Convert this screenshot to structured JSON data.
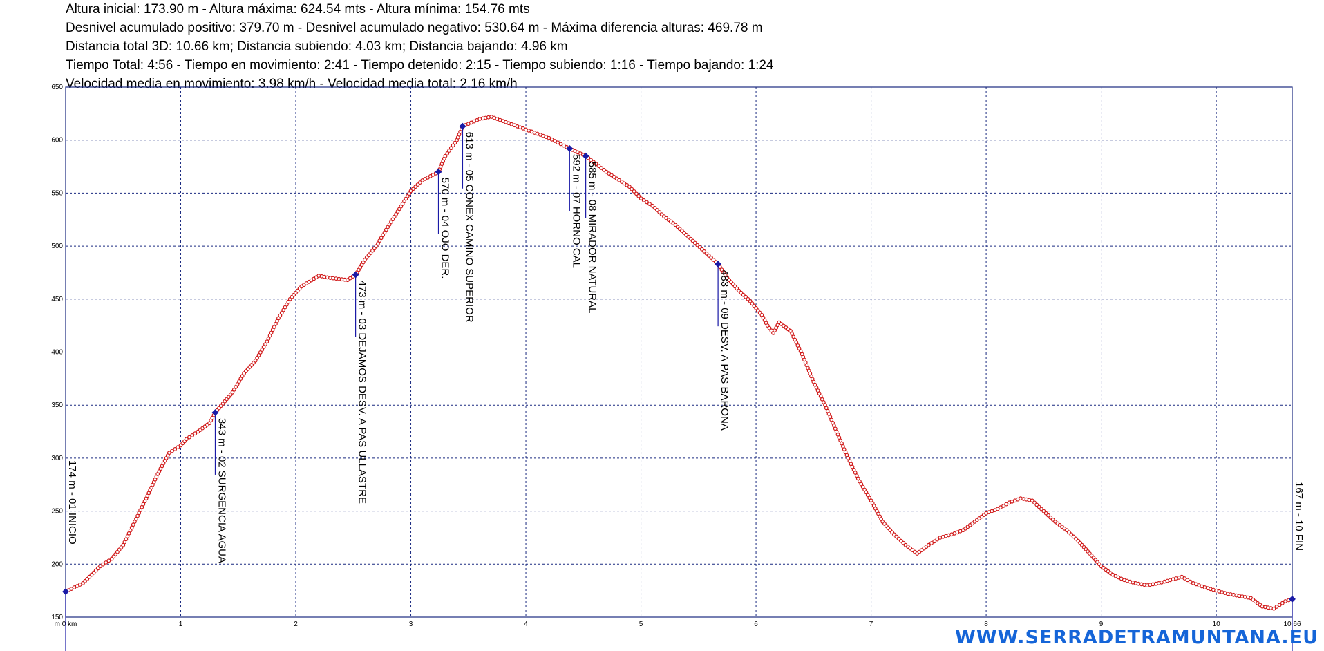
{
  "stats": {
    "line1": "Altura inicial: 173.90 m - Altura máxima: 624.54 mts - Altura mínima: 154.76 mts",
    "line2": "Desnivel acumulado positivo: 379.70 m  - Desnivel acumulado negativo: 530.64 m - Máxima diferencia alturas: 469.78 m",
    "line3": "Distancia total 3D: 10.66 km; Distancia subiendo: 4.03 km; Distancia bajando: 4.96 km",
    "line4": "Tiempo Total: 4:56 - Tiempo en movimiento: 2:41 - Tiempo detenido: 2:15 - Tiempo subiendo: 1:16 - Tiempo bajando: 1:24",
    "line5": "Velocidad media en movimiento: 3.98 km/h - Velocidad media total: 2.16 km/h"
  },
  "watermark": "WWW.SERRADETRAMUNTANA.EU",
  "colors": {
    "profile": "#d01818",
    "waypoint": "#1a1aa6",
    "grid": "#1a2a80",
    "watermark": "#1565d8"
  },
  "chart_data": {
    "type": "line",
    "xlim": [
      0,
      10.66
    ],
    "ylim": [
      150,
      650
    ],
    "x_ticks": [
      1,
      2,
      3,
      4,
      5,
      6,
      7,
      8,
      9,
      10
    ],
    "x_tick_labels": [
      "1",
      "2",
      "3",
      "4",
      "5",
      "6",
      "7",
      "8",
      "9",
      "10"
    ],
    "x_start_label": "m 0 km",
    "x_end_label": "10.66",
    "y_ticks": [
      150,
      200,
      250,
      300,
      350,
      400,
      450,
      500,
      550,
      600,
      650
    ],
    "y_tick_labels": [
      "150",
      "200",
      "250",
      "300",
      "350",
      "400",
      "450",
      "500",
      "550",
      "600",
      "650"
    ],
    "grid": true,
    "series": [
      {
        "x": [
          0,
          0.15,
          0.3,
          0.4,
          0.5,
          0.6,
          0.7,
          0.8,
          0.9,
          1.0,
          1.05,
          1.15,
          1.25,
          1.3,
          1.45,
          1.55,
          1.65,
          1.75,
          1.85,
          1.95,
          2.05,
          2.2,
          2.3,
          2.45,
          2.52,
          2.6,
          2.7,
          2.8,
          2.9,
          3.0,
          3.1,
          3.24,
          3.3,
          3.4,
          3.45,
          3.6,
          3.7,
          3.8,
          3.9,
          4.0,
          4.2,
          4.38,
          4.52,
          4.7,
          4.9,
          5.0,
          5.1,
          5.2,
          5.3,
          5.45,
          5.67,
          5.75,
          5.85,
          5.95,
          6.05,
          6.1,
          6.15,
          6.2,
          6.3,
          6.4,
          6.5,
          6.6,
          6.7,
          6.8,
          6.9,
          7.0,
          7.1,
          7.2,
          7.3,
          7.4,
          7.5,
          7.6,
          7.7,
          7.8,
          7.9,
          8.0,
          8.1,
          8.2,
          8.3,
          8.4,
          8.5,
          8.6,
          8.7,
          8.8,
          8.9,
          9.0,
          9.1,
          9.2,
          9.3,
          9.4,
          9.5,
          9.6,
          9.7,
          9.8,
          9.9,
          10.0,
          10.1,
          10.2,
          10.3,
          10.4,
          10.5,
          10.6,
          10.66
        ],
        "y": [
          174,
          182,
          198,
          205,
          218,
          240,
          262,
          285,
          305,
          312,
          318,
          325,
          333,
          343,
          362,
          380,
          392,
          410,
          432,
          450,
          462,
          472,
          470,
          468,
          473,
          487,
          500,
          518,
          535,
          552,
          562,
          570,
          585,
          600,
          613,
          620,
          622,
          618,
          614,
          610,
          602,
          592,
          585,
          570,
          556,
          545,
          538,
          528,
          520,
          505,
          483,
          470,
          458,
          448,
          435,
          425,
          418,
          428,
          420,
          398,
          372,
          350,
          325,
          300,
          278,
          260,
          240,
          228,
          218,
          210,
          218,
          225,
          228,
          232,
          240,
          248,
          252,
          258,
          262,
          260,
          250,
          240,
          232,
          222,
          210,
          198,
          190,
          185,
          182,
          180,
          182,
          185,
          188,
          182,
          178,
          175,
          172,
          170,
          168,
          160,
          158,
          165,
          167
        ]
      }
    ],
    "waypoints": [
      {
        "x": 0,
        "y": 174,
        "label": "174 m - 01 INICIO"
      },
      {
        "x": 1.3,
        "y": 343,
        "label": "343 m - 02 SURGENCIA AGUA"
      },
      {
        "x": 2.52,
        "y": 473,
        "label": "473 m - 03 DEJAMOS DESV. A PAS ULLASTRE"
      },
      {
        "x": 3.24,
        "y": 570,
        "label": "570 m - 04 OJO DER."
      },
      {
        "x": 3.45,
        "y": 613,
        "label": "613 m - 05 CONEX CAMINO SUPERIOR"
      },
      {
        "x": 4.38,
        "y": 592,
        "label": "592 m - 07 HORNO CAL"
      },
      {
        "x": 4.52,
        "y": 585,
        "label": "585 m - 08 MIRADOR NATURAL"
      },
      {
        "x": 5.67,
        "y": 483,
        "label": "483 m - 09 DESV. A PAS BARONA"
      },
      {
        "x": 10.66,
        "y": 167,
        "label": "167 m - 10 FIN"
      }
    ]
  }
}
